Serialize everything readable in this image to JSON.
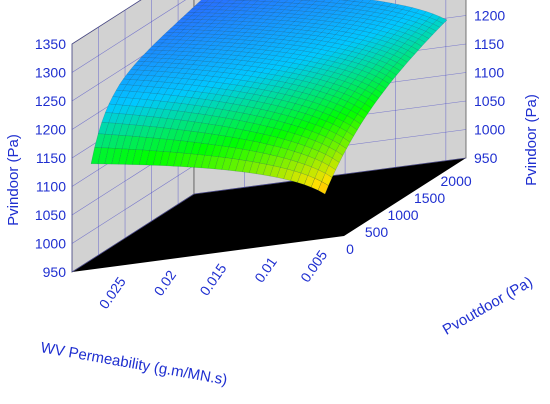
{
  "chart_data": {
    "type": "surface",
    "title": "",
    "x_axis": {
      "label": "WV Permeability (g.m/MN.s)",
      "ticks": [
        "0.025",
        "0.02",
        "0.015",
        "0.01",
        "0.005"
      ],
      "range": [
        0.003,
        0.03
      ]
    },
    "y_axis": {
      "label": "Pvoutdoor (Pa)",
      "ticks": [
        "0",
        "500",
        "1000",
        "1500",
        "2000"
      ],
      "range": [
        0,
        2300
      ]
    },
    "z_axis": {
      "label": "Pvindoor (Pa)",
      "ticks": [
        "950",
        "1000",
        "1050",
        "1100",
        "1150",
        "1200",
        "1250",
        "1300",
        "1350"
      ],
      "range": [
        950,
        1350
      ]
    },
    "surface": {
      "high_permeability_end": {
        "pvoutdoor_min": 1140,
        "pvoutdoor_max": 1310
      },
      "low_permeability_end": {
        "pvoutdoor_min": 955,
        "pvoutdoor_max": 1165
      },
      "colormap": [
        "#ff2000",
        "#ffe000",
        "#00ff00",
        "#00c8ff",
        "#2a6cff"
      ]
    },
    "colors": {
      "axis_text": "#1f2fd0",
      "floor": "#000000",
      "walls": "#d2d2d2",
      "grid": "#3c3cc8"
    }
  }
}
